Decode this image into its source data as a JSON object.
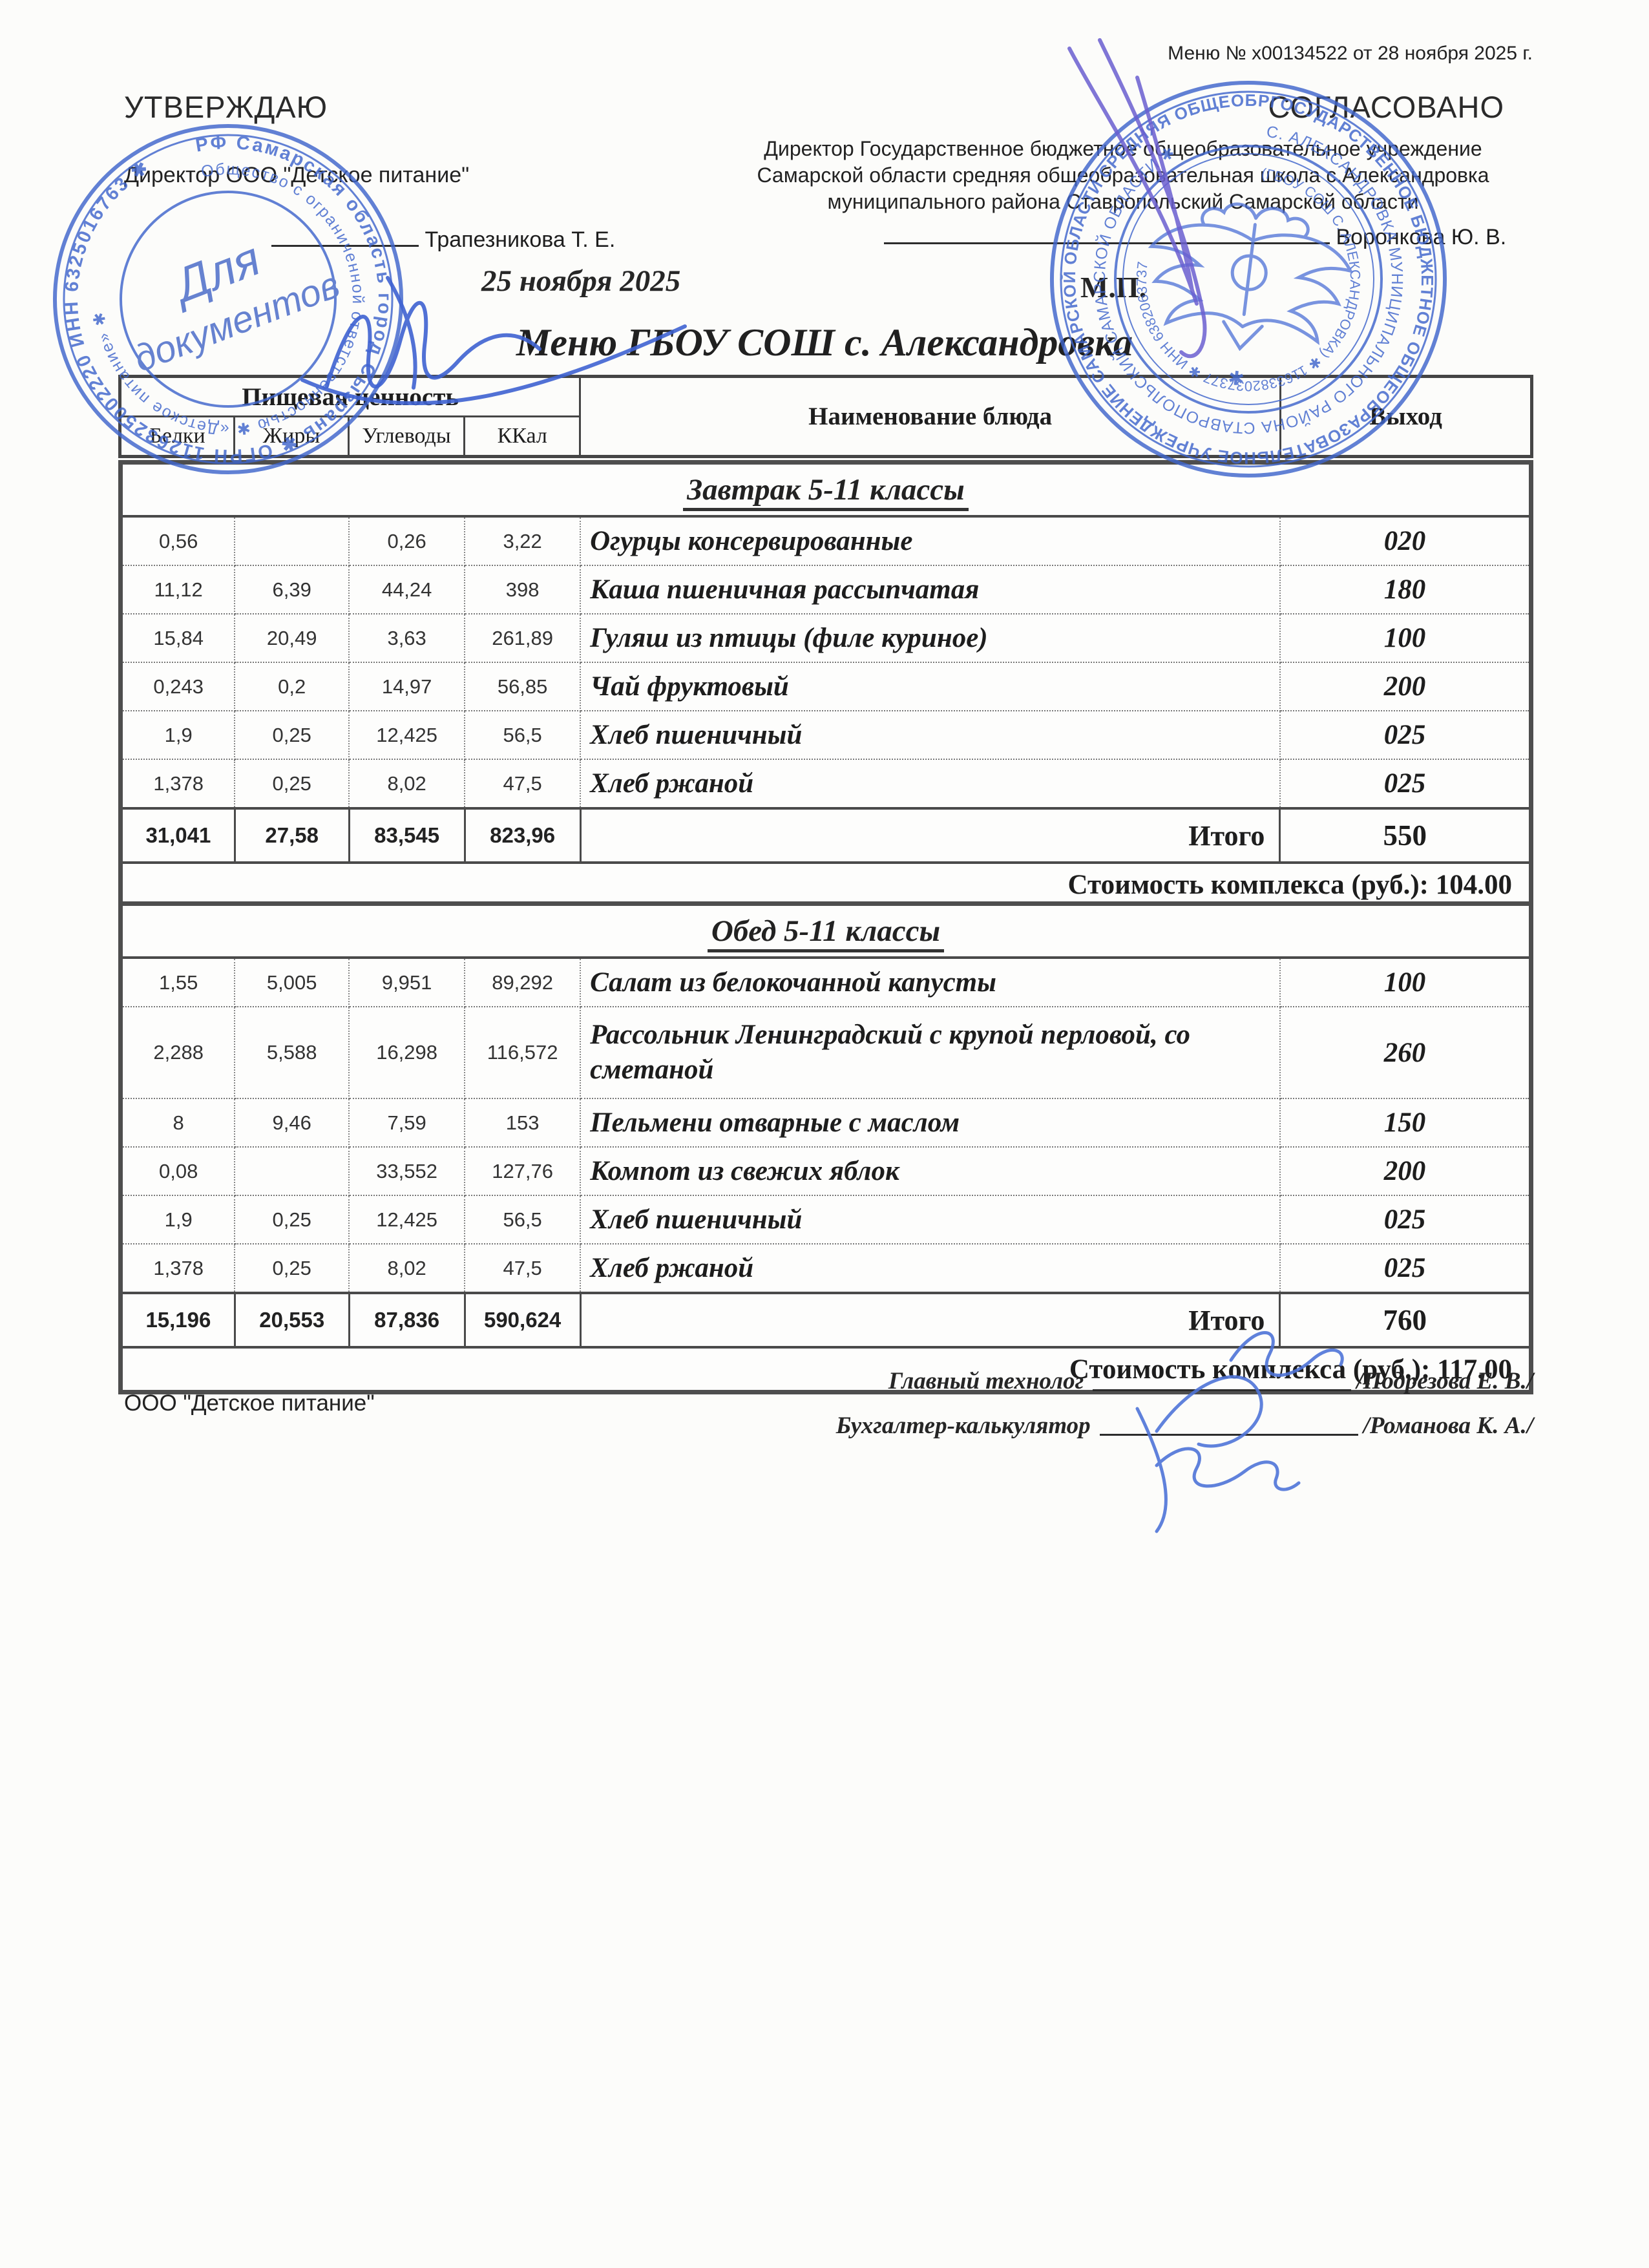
{
  "page": {
    "menu_ref": "Меню № х00134522 от 28 ноября 2025 г.",
    "doc_title": "Меню ГБОУ СОШ с. Александровка"
  },
  "approval_left": {
    "heading": "УТВЕРЖДАЮ",
    "role": "Директор ООО \"Детское питание\"",
    "signer": "Трапезникова Т. Е.",
    "date": "25 ноября 2025"
  },
  "approval_right": {
    "heading": "СОГЛАСОВАНО",
    "role": "Директор Государственное бюджетное общеобразовательное учреждение Самарской области средняя общеобразовательная школа с.Александровка муниципального района Ставропольский Самарской области",
    "signer": "Воронкова Ю. В.",
    "seal_mark": "М.П."
  },
  "table_header": {
    "nutrition_group": "Пищевая ценность",
    "protein": "Белки",
    "fats": "Жиры",
    "carbs": "Углеводы",
    "kcal": "ККал",
    "dish": "Наименование блюда",
    "portion": "Выход"
  },
  "sections": [
    {
      "title": "Завтрак 5-11 классы",
      "rows": [
        [
          "0,56",
          "",
          "0,26",
          "3,22",
          "Огурцы консервированные",
          "020"
        ],
        [
          "11,12",
          "6,39",
          "44,24",
          "398",
          "Каша пшеничная рассыпчатая",
          "180"
        ],
        [
          "15,84",
          "20,49",
          "3,63",
          "261,89",
          "Гуляш из птицы (филе куриное)",
          "100"
        ],
        [
          "0,243",
          "0,2",
          "14,97",
          "56,85",
          "Чай фруктовый",
          "200"
        ],
        [
          "1,9",
          "0,25",
          "12,425",
          "56,5",
          "Хлеб пшеничный",
          "025"
        ],
        [
          "1,378",
          "0,25",
          "8,02",
          "47,5",
          "Хлеб ржаной",
          "025"
        ]
      ],
      "tall_rows": [],
      "total": [
        "31,041",
        "27,58",
        "83,545",
        "823,96",
        "Итого",
        "550"
      ],
      "cost": "Стоимость комплекса (руб.): 104.00"
    },
    {
      "title": "Обед 5-11 классы",
      "rows": [
        [
          "1,55",
          "5,005",
          "9,951",
          "89,292",
          "Салат из белокочанной капусты",
          "100"
        ],
        [
          "2,288",
          "5,588",
          "16,298",
          "116,572",
          "Рассольник Ленинградский с крупой перловой, со сметаной",
          "260"
        ],
        [
          "8",
          "9,46",
          "7,59",
          "153",
          "Пельмени отварные с маслом",
          "150"
        ],
        [
          "0,08",
          "",
          "33,552",
          "127,76",
          "Компот из свежих яблок",
          "200"
        ],
        [
          "1,9",
          "0,25",
          "12,425",
          "56,5",
          "Хлеб пшеничный",
          "025"
        ],
        [
          "1,378",
          "0,25",
          "8,02",
          "47,5",
          "Хлеб ржаной",
          "025"
        ]
      ],
      "tall_rows": [
        1
      ],
      "total": [
        "15,196",
        "20,553",
        "87,836",
        "590,624",
        "Итого",
        "760"
      ],
      "cost": "Стоимость комплекса (руб.): 117.00"
    }
  ],
  "footer": {
    "org": "ООО \"Детское питание\"",
    "technologist_label": "Главный технолог",
    "technologist_name": "/Подрезова Е. В./",
    "accountant_label": "Бухгалтер-калькулятор",
    "accountant_name": "/Романова К. А./"
  },
  "stamps": {
    "ink_color": "#4066cc",
    "left": {
      "ring_outer": "РФ Самарская область город Сызрань ✱ ОГРН 1126325002220 ИНН 6325016763 ✱",
      "ring_inner": "Общество с ограниченной ответственностью ✱ «Детское питание» ✱",
      "center_line1": "Для",
      "center_line2": "документов"
    },
    "right": {
      "ring_outer": "ГОСУДАРСТВЕННОЕ БЮДЖЕТНОЕ ОБЩЕОБРАЗОВАТЕЛЬНОЕ УЧРЕЖДЕНИЕ САМАРСКОЙ ОБЛАСТИ СРЕДНЯЯ ОБЩЕОБРАЗОВАТЕЛЬНАЯ ШКОЛА ✱",
      "ring_middle": "С. АЛЕКСАНДРОВКА МУНИЦИПАЛЬНОГО РАЙОНА СТАВРОПОЛЬСКИЙ САМАРСКОЙ ОБЛАСТИ ✱",
      "ring_inner": "(ГБОУ СОШ С. АЛЕКСАНДРОВКА) ✱ 1163382037377 ✱ ИНН 6382063737"
    }
  }
}
